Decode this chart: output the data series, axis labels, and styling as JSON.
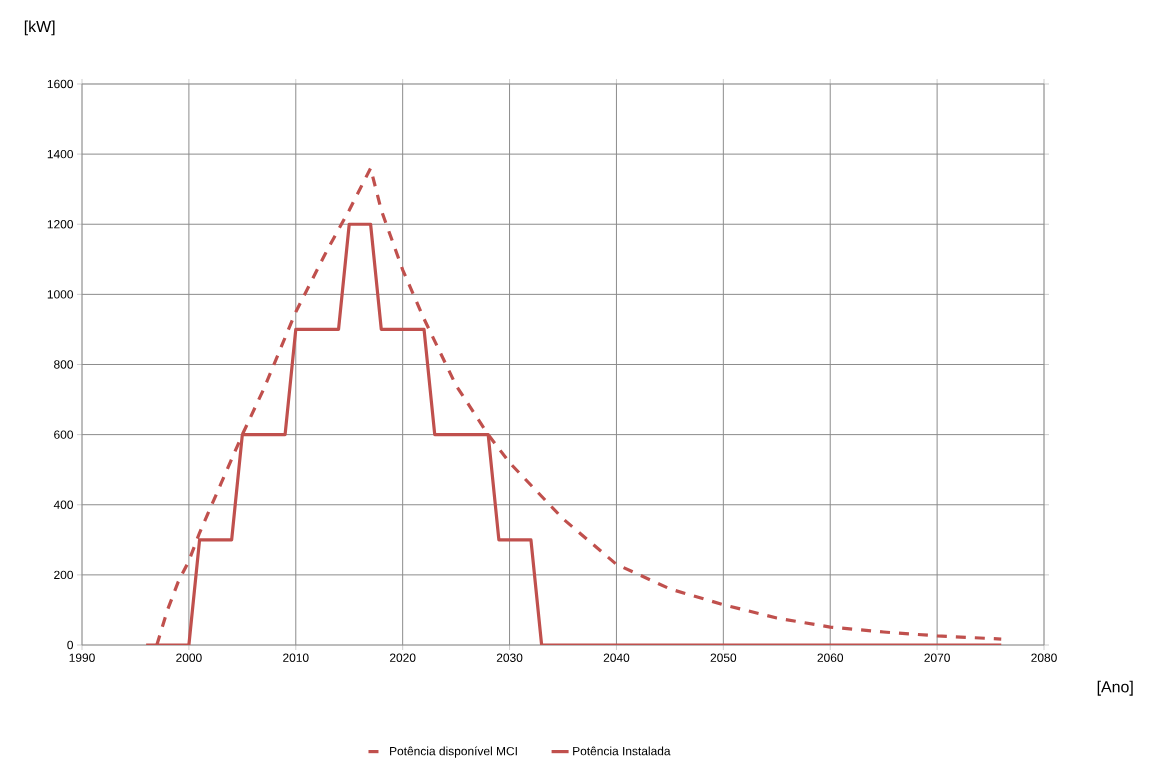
{
  "chart_data": {
    "type": "line",
    "xlabel": "[Ano]",
    "ylabel": "[kW]",
    "xlim": [
      1990,
      2080
    ],
    "xticks": [
      1990,
      2000,
      2010,
      2020,
      2030,
      2040,
      2050,
      2060,
      2070,
      2080
    ],
    "ylim": [
      0,
      1600
    ],
    "yticks": [
      0,
      200,
      400,
      600,
      800,
      1000,
      1200,
      1400,
      1600
    ],
    "grid": true,
    "legend": "bottom",
    "marker": "none",
    "series": [
      {
        "name": "Potência disponível MCI",
        "color": "#c0504d",
        "line_style": "dashed",
        "x": [
          1997,
          1998,
          1999,
          2000,
          2001,
          2003,
          2005,
          2007,
          2010,
          2013,
          2015,
          2017,
          2018,
          2020,
          2022,
          2025,
          2028,
          2030,
          2035,
          2040,
          2045,
          2050,
          2055,
          2060,
          2065,
          2070,
          2076
        ],
        "values": [
          0,
          100,
          180,
          240,
          320,
          460,
          600,
          730,
          950,
          1130,
          1240,
          1360,
          1240,
          1070,
          930,
          740,
          600,
          520,
          360,
          230,
          160,
          115,
          77,
          51,
          37,
          26,
          17
        ]
      },
      {
        "name": "Potência Instalada",
        "color": "#c0504d",
        "line_style": "solid",
        "x": [
          1996,
          2000,
          2001,
          2004,
          2005,
          2009,
          2010,
          2014,
          2015,
          2017,
          2018,
          2022,
          2023,
          2028,
          2029,
          2032,
          2033,
          2076
        ],
        "values": [
          0,
          0,
          300,
          300,
          600,
          600,
          900,
          900,
          1200,
          1200,
          900,
          900,
          600,
          600,
          300,
          300,
          0,
          0
        ]
      }
    ]
  }
}
